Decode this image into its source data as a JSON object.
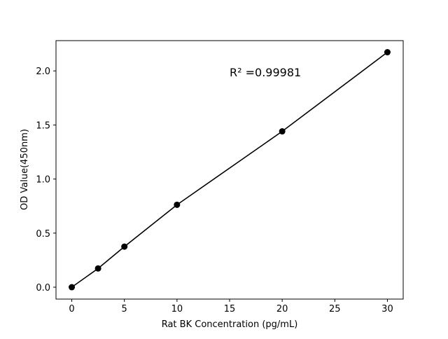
{
  "chart_data": {
    "type": "line",
    "title": "",
    "xlabel": "Rat BK Concentration (pg/mL)",
    "ylabel": "OD Value(450nm)",
    "xlim": [
      -1.5,
      31.5
    ],
    "ylim": [
      -0.11,
      2.28
    ],
    "xticks": [
      0,
      5,
      10,
      15,
      20,
      25,
      30
    ],
    "xtick_labels": [
      "0",
      "5",
      "10",
      "15",
      "20",
      "25",
      "30"
    ],
    "yticks": [
      0.0,
      0.5,
      1.0,
      1.5,
      2.0
    ],
    "ytick_labels": [
      "0.0",
      "0.5",
      "1.0",
      "1.5",
      "2.0"
    ],
    "grid": false,
    "series": [
      {
        "x": [
          0,
          2.5,
          5,
          10,
          20,
          30
        ],
        "y": [
          0.0,
          0.173,
          0.375,
          0.762,
          1.441,
          2.173
        ],
        "color": "#000000",
        "marker": "circle"
      }
    ],
    "annotation": {
      "text": "R² =0.99981",
      "x": 15,
      "y": 1.95
    }
  }
}
